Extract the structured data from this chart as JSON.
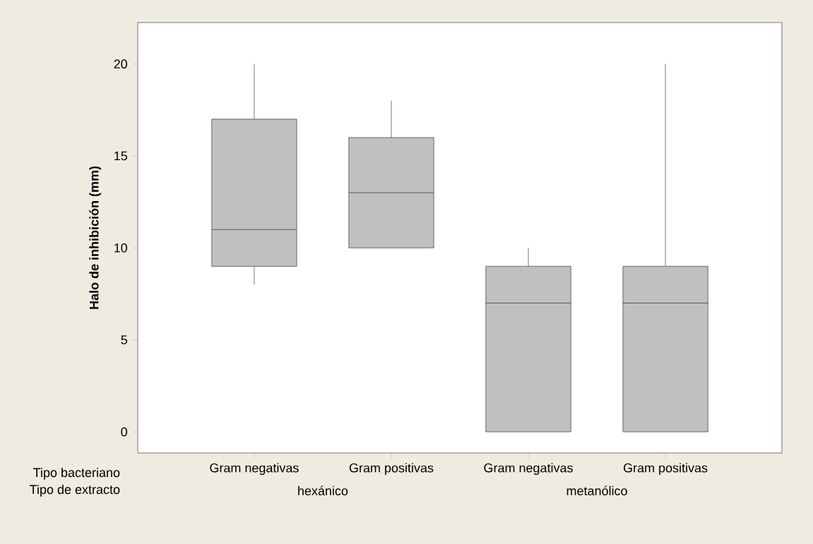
{
  "chart_data": {
    "type": "box",
    "ylabel": "Halo de inhibición (mm)",
    "categories": [
      "Gram negativas",
      "Gram positivas",
      "Gram negativas",
      "Gram positivas"
    ],
    "boxes": [
      {
        "low": 8,
        "q1": 9,
        "median": 11,
        "q3": 17,
        "high": 20
      },
      {
        "low": 10,
        "q1": 10,
        "median": 13,
        "q3": 16,
        "high": 18
      },
      {
        "low": 0,
        "q1": 0,
        "median": 7,
        "q3": 9,
        "high": 10
      },
      {
        "low": 0,
        "q1": 0,
        "median": 7,
        "q3": 9,
        "high": 20
      }
    ],
    "color": "#c0c0c0",
    "ylim": [
      -1.15,
      22.25
    ],
    "yticks": [
      0,
      5,
      10,
      15,
      20
    ],
    "annotations": [
      "Tipo bacteriano",
      "Tipo de extracto",
      "hexánico",
      "metanólico"
    ]
  }
}
